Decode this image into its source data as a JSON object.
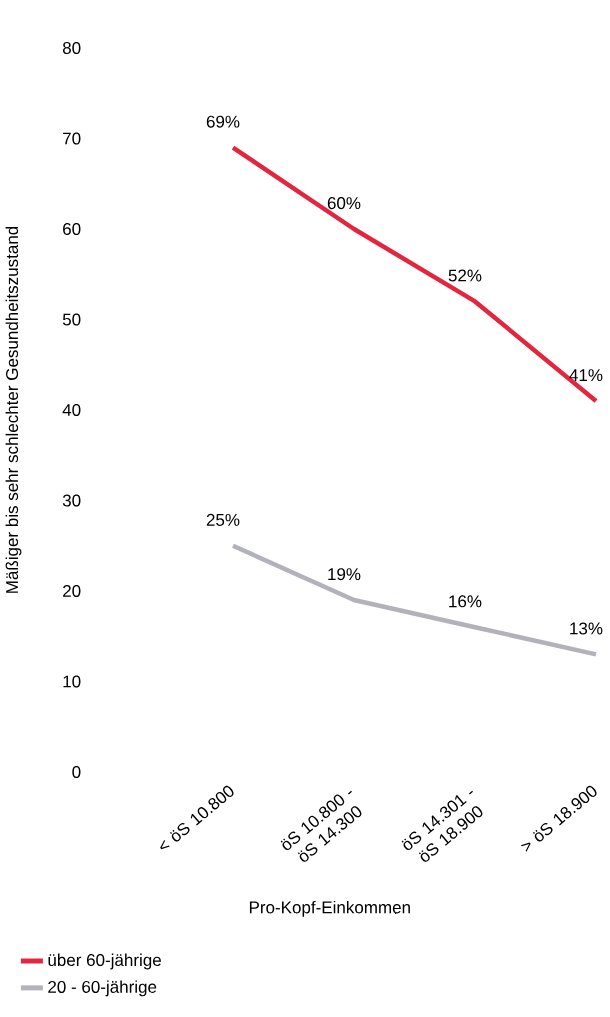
{
  "chart_data": {
    "type": "line",
    "categories": [
      "< öS 10.800",
      "öS 10.800 - öS 14.300",
      "öS 14.301 - öS 18.900",
      "> öS 18.900"
    ],
    "series": [
      {
        "name": "über 60-jährige",
        "color": "#e3263f",
        "values": [
          69,
          60,
          52,
          41
        ],
        "value_labels": [
          "69%",
          "60%",
          "52%",
          "41%"
        ]
      },
      {
        "name": "20 - 60-jährige",
        "color": "#b2b2ba",
        "values": [
          25,
          19,
          16,
          13
        ],
        "value_labels": [
          "25%",
          "19%",
          "16%",
          "13%"
        ]
      }
    ],
    "xlabel": "Pro-Kopf-Einkommen",
    "ylabel": "Mäßiger bis sehr schlechter Gesundheitszustand",
    "ylim": [
      0,
      80
    ],
    "yticks": [
      0,
      10,
      20,
      30,
      40,
      50,
      60,
      70,
      80
    ],
    "legend": "bottom left"
  }
}
